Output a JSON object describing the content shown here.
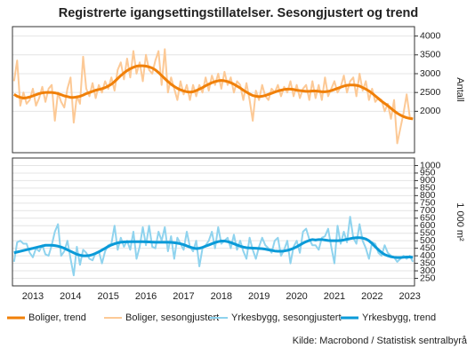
{
  "chart_data": [
    {
      "type": "line",
      "title": "Registrerte igangsettingstillatelser. Sesongjustert og trend",
      "ylabel": "Antall",
      "ylim": [
        900,
        4250
      ],
      "yticks": [
        2000,
        2500,
        3000,
        3500,
        4000
      ],
      "grid": true,
      "series": [
        {
          "name": "Boliger, sesongjustert",
          "color": "#fcc996",
          "width": 2,
          "values": [
            2800,
            3350,
            2150,
            2500,
            2200,
            2300,
            2600,
            2150,
            2350,
            2650,
            2250,
            2600,
            2700,
            1750,
            2500,
            2250,
            2100,
            2600,
            2900,
            1700,
            2400,
            2200,
            3450,
            2600,
            2400,
            2750,
            2350,
            2700,
            2500,
            2800,
            2600,
            2900,
            2550,
            3100,
            3300,
            2850,
            3400,
            2900,
            3600,
            3000,
            3300,
            2800,
            3500,
            3100,
            3000,
            3350,
            3600,
            2700,
            3650,
            2500,
            2900,
            2600,
            2300,
            2800,
            2450,
            2700,
            2300,
            2700,
            2400,
            2700,
            2500,
            2900,
            2550,
            2950,
            2700,
            3000,
            2600,
            3050,
            2700,
            2900,
            2500,
            2800,
            2700,
            2300,
            2750,
            2300,
            1750,
            2550,
            2300,
            2700,
            2400,
            2300,
            2600,
            2500,
            2700,
            2400,
            2650,
            2500,
            2800,
            2400,
            2700,
            2350,
            2600,
            2700,
            2300,
            2800,
            2350,
            2700,
            2300,
            2900,
            2400,
            2600,
            2800,
            2500,
            2650,
            2950,
            2500,
            2800,
            2900,
            2400,
            3000,
            2550,
            2800,
            2300,
            2600,
            2250,
            2350,
            2300,
            2000,
            2200,
            1800,
            2300,
            1150,
            1550,
            1950,
            2450,
            1850,
            1800
          ]
        },
        {
          "name": "Boliger, trend",
          "color": "#f08009",
          "width": 3,
          "values": [
            2450,
            2400,
            2370,
            2350,
            2360,
            2380,
            2410,
            2440,
            2470,
            2490,
            2500,
            2500,
            2500,
            2490,
            2470,
            2440,
            2410,
            2390,
            2370,
            2370,
            2380,
            2400,
            2430,
            2470,
            2500,
            2530,
            2560,
            2580,
            2600,
            2630,
            2670,
            2720,
            2790,
            2870,
            2950,
            3020,
            3080,
            3130,
            3170,
            3200,
            3210,
            3210,
            3200,
            3180,
            3150,
            3100,
            3030,
            2950,
            2870,
            2790,
            2720,
            2660,
            2610,
            2570,
            2540,
            2520,
            2510,
            2520,
            2550,
            2590,
            2630,
            2680,
            2720,
            2760,
            2790,
            2810,
            2820,
            2810,
            2790,
            2760,
            2720,
            2670,
            2620,
            2560,
            2510,
            2460,
            2420,
            2400,
            2390,
            2400,
            2420,
            2450,
            2480,
            2510,
            2540,
            2560,
            2580,
            2590,
            2590,
            2580,
            2560,
            2550,
            2540,
            2530,
            2530,
            2540,
            2540,
            2530,
            2520,
            2520,
            2530,
            2550,
            2580,
            2610,
            2640,
            2670,
            2690,
            2700,
            2700,
            2690,
            2670,
            2630,
            2590,
            2540,
            2480,
            2410,
            2340,
            2270,
            2210,
            2150,
            2080,
            2010,
            1950,
            1900,
            1860,
            1830,
            1810,
            1800
          ]
        }
      ]
    },
    {
      "type": "line",
      "ylabel": "1 000 m²",
      "source": "Kilde: Macrobond / Statistisk sentralbyrå",
      "ylim": [
        200,
        1050
      ],
      "yticks": [
        250,
        300,
        350,
        400,
        450,
        500,
        550,
        600,
        650,
        700,
        750,
        800,
        850,
        900,
        950,
        1000
      ],
      "grid": true,
      "categories": [
        null,
        null,
        null,
        null,
        null,
        null,
        "2013",
        null,
        null,
        null,
        null,
        null,
        null,
        null,
        null,
        null,
        null,
        null,
        "2014",
        null,
        null,
        null,
        null,
        null,
        null,
        null,
        null,
        null,
        null,
        null,
        "2015",
        null,
        null,
        null,
        null,
        null,
        null,
        null,
        null,
        null,
        null,
        null,
        "2016",
        null,
        null,
        null,
        null,
        null,
        null,
        null,
        null,
        null,
        null,
        null,
        "2017",
        null,
        null,
        null,
        null,
        null,
        null,
        null,
        null,
        null,
        null,
        null,
        "2018",
        null,
        null,
        null,
        null,
        null,
        null,
        null,
        null,
        null,
        null,
        null,
        "2019",
        null,
        null,
        null,
        null,
        null,
        null,
        null,
        null,
        null,
        null,
        null,
        "2020",
        null,
        null,
        null,
        null,
        null,
        null,
        null,
        null,
        null,
        null,
        null,
        "2021",
        null,
        null,
        null,
        null,
        null,
        null,
        null,
        null,
        null,
        null,
        null,
        "2022",
        null,
        null,
        null,
        null,
        null,
        null,
        null,
        null,
        null,
        null,
        null,
        "2023",
        null
      ],
      "series": [
        {
          "name": "Yrkesbygg, sesongjustert",
          "color": "#8fd3ee",
          "width": 2,
          "values": [
            360,
            490,
            500,
            480,
            480,
            420,
            390,
            450,
            430,
            470,
            410,
            400,
            470,
            560,
            610,
            400,
            430,
            500,
            380,
            270,
            460,
            340,
            440,
            420,
            380,
            370,
            420,
            430,
            350,
            430,
            470,
            480,
            600,
            440,
            520,
            460,
            500,
            440,
            560,
            380,
            460,
            590,
            470,
            600,
            460,
            450,
            560,
            500,
            590,
            430,
            530,
            380,
            520,
            480,
            440,
            560,
            460,
            430,
            500,
            330,
            450,
            470,
            500,
            560,
            450,
            590,
            480,
            500,
            520,
            450,
            540,
            440,
            500,
            430,
            380,
            520,
            440,
            380,
            460,
            520,
            470,
            450,
            420,
            500,
            520,
            400,
            440,
            500,
            350,
            460,
            500,
            420,
            560,
            580,
            510,
            470,
            470,
            440,
            520,
            530,
            580,
            460,
            350,
            600,
            480,
            560,
            490,
            660,
            520,
            480,
            610,
            500,
            450,
            380,
            490,
            480,
            420,
            400,
            470,
            420,
            400,
            390,
            360,
            380,
            400,
            380,
            400,
            360
          ]
        },
        {
          "name": "Yrkesbygg, trend",
          "color": "#0a9ad8",
          "width": 3,
          "values": [
            420,
            425,
            430,
            435,
            440,
            445,
            450,
            455,
            460,
            465,
            470,
            470,
            470,
            468,
            464,
            458,
            450,
            440,
            430,
            420,
            410,
            404,
            400,
            400,
            402,
            408,
            416,
            426,
            438,
            450,
            462,
            472,
            480,
            486,
            490,
            492,
            493,
            494,
            494,
            494,
            494,
            494,
            493,
            492,
            491,
            490,
            490,
            490,
            490,
            490,
            489,
            487,
            484,
            480,
            474,
            466,
            458,
            452,
            448,
            450,
            456,
            464,
            472,
            480,
            488,
            494,
            498,
            498,
            494,
            488,
            480,
            472,
            464,
            458,
            454,
            452,
            451,
            450,
            449,
            447,
            444,
            440,
            436,
            432,
            430,
            430,
            432,
            436,
            442,
            450,
            460,
            472,
            484,
            494,
            502,
            508,
            505,
            508,
            508,
            505,
            502,
            500,
            500,
            500,
            502,
            505,
            510,
            514,
            518,
            520,
            520,
            518,
            512,
            500,
            482,
            460,
            440,
            422,
            408,
            400,
            394,
            390,
            388,
            388,
            390,
            392,
            392,
            390
          ]
        }
      ]
    }
  ]
}
